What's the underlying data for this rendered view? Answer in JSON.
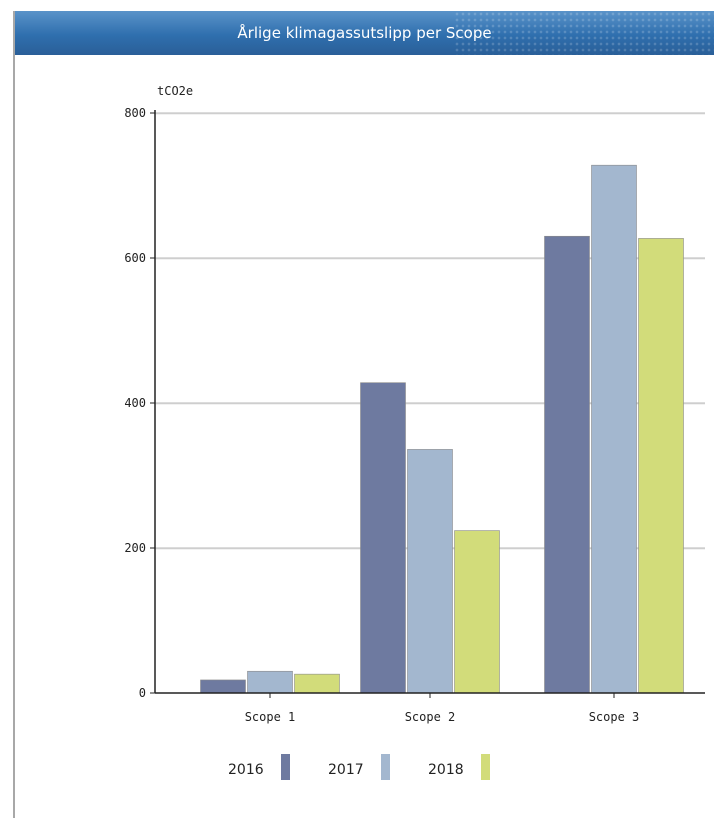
{
  "header": {
    "title": "Årlige klimagassutslipp per Scope"
  },
  "chart_data": {
    "type": "bar",
    "title": "Årlige klimagassutslipp per Scope",
    "ylabel": "tCO2e",
    "xlabel": "",
    "ylim": [
      0,
      800
    ],
    "yticks": [
      0,
      200,
      400,
      600,
      800
    ],
    "grid": true,
    "legend_position": "bottom",
    "categories": [
      "Scope 1",
      "Scope 2",
      "Scope 3"
    ],
    "series": [
      {
        "name": "2016",
        "color": "#6e7aa0",
        "values": [
          18,
          428,
          630
        ]
      },
      {
        "name": "2017",
        "color": "#a3b7cf",
        "values": [
          30,
          336,
          728
        ]
      },
      {
        "name": "2018",
        "color": "#d2dc7a",
        "values": [
          26,
          224,
          627
        ]
      }
    ]
  }
}
